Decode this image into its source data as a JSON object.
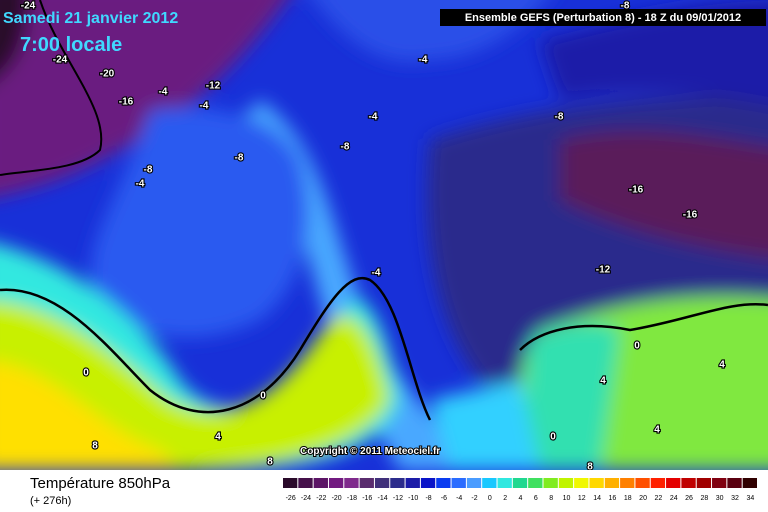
{
  "header": {
    "date": "Samedi 21 janvier 2012",
    "time": "7:00 locale",
    "run": "Ensemble GEFS (Perturbation 8)  -  18 Z du 09/01/2012"
  },
  "copyright": "Copyright © 2011 Meteociel.fr",
  "footer": {
    "parameter": "Température 850hPa",
    "lead": "(+ 276h)"
  },
  "legend": {
    "stops": [
      -26,
      -24,
      -22,
      -20,
      -18,
      -16,
      -14,
      -12,
      -10,
      -8,
      -6,
      -4,
      -2,
      0,
      2,
      4,
      6,
      8,
      10,
      12,
      14,
      16,
      18,
      20,
      22,
      24,
      26,
      28,
      30,
      32,
      34
    ],
    "colors": [
      "#2a0a2a",
      "#45104a",
      "#5c1466",
      "#721a80",
      "#7f2a8c",
      "#5a2c6e",
      "#40307a",
      "#2c2c8c",
      "#1c1ca8",
      "#0a14c8",
      "#0a3cf0",
      "#2a6cff",
      "#4a9cff",
      "#18c8ff",
      "#30e8e0",
      "#20d890",
      "#40e060",
      "#80ec20",
      "#c0f400",
      "#f0f800",
      "#ffd800",
      "#ffb000",
      "#ff8000",
      "#ff5000",
      "#ff2000",
      "#e40000",
      "#c00000",
      "#a00000",
      "#800010",
      "#5a0010",
      "#300000"
    ]
  },
  "contour_labels": [
    "-24",
    "-24",
    "-20",
    "-16",
    "-4",
    "-12",
    "-4",
    "-8",
    "-8",
    "-4",
    "-4",
    "-4",
    "-8",
    "-8",
    "-8",
    "-16",
    "-16",
    "-12",
    "-4",
    "0",
    "0",
    "4",
    "8",
    "8",
    "0",
    "4",
    "4",
    "4",
    "0",
    "8"
  ]
}
